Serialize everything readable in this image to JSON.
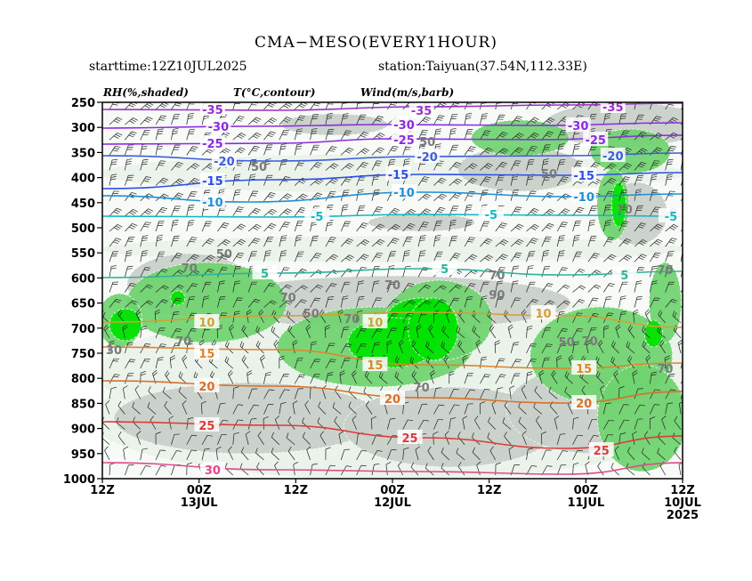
{
  "header": {
    "title": "CMA−MESO(EVERY1HOUR)",
    "starttime": "starttime:12Z10JUL2025",
    "station": "station:Taiyuan(37.54N,112.33E)"
  },
  "chart_data": {
    "type": "heatmap",
    "field_labels": {
      "rh": "RH(%,shaded)",
      "temp": "T(°C,contour)",
      "wind": "Wind(m/s,barb)"
    },
    "y_axis": {
      "scale": "pressure-reversed",
      "ylim": [
        1000,
        250
      ],
      "ticks": [
        "250",
        "300",
        "350",
        "400",
        "450",
        "500",
        "550",
        "600",
        "650",
        "700",
        "750",
        "800",
        "850",
        "900",
        "950",
        "1000"
      ]
    },
    "x_axis": {
      "direction": "time-reversed",
      "ticks": [
        {
          "label": "12Z",
          "sub": "",
          "sub2": ""
        },
        {
          "label": "00Z",
          "sub": "13JUL",
          "sub2": ""
        },
        {
          "label": "12Z",
          "sub": "",
          "sub2": ""
        },
        {
          "label": "00Z",
          "sub": "12JUL",
          "sub2": ""
        },
        {
          "label": "12Z",
          "sub": "",
          "sub2": ""
        },
        {
          "label": "00Z",
          "sub": "11JUL",
          "sub2": ""
        },
        {
          "label": "12Z",
          "sub": "10JUL",
          "sub2": "2025"
        }
      ]
    },
    "rh_levels": [
      30,
      50,
      70,
      90
    ],
    "rh_colors": {
      "30": "#eaf3ea",
      "50": "#c9cfc9",
      "70": "#6fd46f",
      "90": "#00e400"
    },
    "temperature_contours": [
      {
        "t": -35,
        "color": "#9b30c9",
        "path": [
          [
            0,
            123
          ],
          [
            0.3,
            124
          ],
          [
            0.55,
            120
          ],
          [
            0.8,
            118
          ],
          [
            1,
            116
          ]
        ],
        "labels": [
          [
            0.19,
            123,
            "-35"
          ],
          [
            0.55,
            124,
            "-35"
          ],
          [
            0.88,
            120,
            "-35"
          ]
        ]
      },
      {
        "t": -30,
        "color": "#8a2be2",
        "path": [
          [
            0,
            144
          ],
          [
            0.25,
            142
          ],
          [
            0.5,
            140
          ],
          [
            0.75,
            141
          ],
          [
            1,
            138
          ]
        ],
        "labels": [
          [
            0.2,
            142,
            "-30"
          ],
          [
            0.52,
            140,
            "-30"
          ],
          [
            0.82,
            141,
            "-30"
          ]
        ]
      },
      {
        "t": -25,
        "color": "#8a2be2",
        "path": [
          [
            0,
            162
          ],
          [
            0.3,
            161
          ],
          [
            0.5,
            156
          ],
          [
            0.75,
            157
          ],
          [
            1,
            152
          ]
        ],
        "labels": [
          [
            0.19,
            161,
            "-25"
          ],
          [
            0.52,
            157,
            "-25"
          ],
          [
            0.85,
            157,
            "-25"
          ]
        ]
      },
      {
        "t": -20,
        "color": "#3c5ddc",
        "path": [
          [
            0,
            175
          ],
          [
            0.3,
            181
          ],
          [
            0.55,
            176
          ],
          [
            0.8,
            175
          ],
          [
            1,
            172
          ]
        ],
        "labels": [
          [
            0.21,
            181,
            "-20"
          ],
          [
            0.56,
            176,
            "-20"
          ],
          [
            0.88,
            175,
            "-20"
          ]
        ]
      },
      {
        "t": -15,
        "color": "#2b4fe6",
        "path": [
          [
            0,
            212
          ],
          [
            0.3,
            202
          ],
          [
            0.55,
            196
          ],
          [
            0.8,
            197
          ],
          [
            1,
            194
          ]
        ],
        "labels": [
          [
            0.19,
            203,
            "-15"
          ],
          [
            0.51,
            196,
            "-15"
          ],
          [
            0.83,
            197,
            "-15"
          ]
        ]
      },
      {
        "t": -10,
        "color": "#1e90d6",
        "path": [
          [
            0,
            220
          ],
          [
            0.25,
            227
          ],
          [
            0.55,
            216
          ],
          [
            0.8,
            221
          ],
          [
            1,
            218
          ]
        ],
        "labels": [
          [
            0.19,
            227,
            "-10"
          ],
          [
            0.52,
            216,
            "-10"
          ],
          [
            0.83,
            221,
            "-10"
          ]
        ]
      },
      {
        "t": -5,
        "color": "#12b7c4",
        "path": [
          [
            0,
            243
          ],
          [
            0.3,
            244
          ],
          [
            0.55,
            241
          ],
          [
            0.8,
            242
          ],
          [
            1,
            243
          ]
        ],
        "labels": [
          [
            0.37,
            243,
            "-5"
          ],
          [
            0.67,
            241,
            "-5"
          ],
          [
            0.98,
            243,
            "-5"
          ]
        ]
      },
      {
        "t": 5,
        "color": "#2bb39a",
        "path": [
          [
            0,
            312
          ],
          [
            0.3,
            307
          ],
          [
            0.55,
            302
          ],
          [
            0.8,
            309
          ],
          [
            1,
            305
          ]
        ],
        "labels": [
          [
            0.28,
            307,
            "5"
          ],
          [
            0.59,
            302,
            "5"
          ],
          [
            0.9,
            309,
            "5"
          ]
        ]
      },
      {
        "t": 10,
        "color": "#d2a036",
        "path": [
          [
            0,
            362
          ],
          [
            0.3,
            355
          ],
          [
            0.55,
            351
          ],
          [
            0.8,
            355
          ],
          [
            1,
            368
          ]
        ],
        "labels": [
          [
            0.18,
            362,
            "10"
          ],
          [
            0.47,
            362,
            "10"
          ],
          [
            0.76,
            352,
            "10"
          ]
        ]
      },
      {
        "t": 15,
        "color": "#e0842a",
        "path": [
          [
            0,
            390
          ],
          [
            0.3,
            393
          ],
          [
            0.55,
            410
          ],
          [
            0.8,
            414
          ],
          [
            1,
            408
          ]
        ],
        "labels": [
          [
            0.18,
            397,
            "15"
          ],
          [
            0.47,
            410,
            "15"
          ],
          [
            0.83,
            414,
            "15"
          ]
        ]
      },
      {
        "t": 20,
        "color": "#d9702a",
        "path": [
          [
            0,
            428
          ],
          [
            0.3,
            434
          ],
          [
            0.55,
            447
          ],
          [
            0.8,
            453
          ],
          [
            1,
            440
          ]
        ],
        "labels": [
          [
            0.18,
            434,
            "20"
          ],
          [
            0.5,
            448,
            "20"
          ],
          [
            0.83,
            453,
            "20"
          ]
        ]
      },
      {
        "t": 25,
        "color": "#dd3b3b",
        "path": [
          [
            0,
            474
          ],
          [
            0.3,
            478
          ],
          [
            0.55,
            492
          ],
          [
            0.8,
            504
          ],
          [
            1,
            490
          ]
        ],
        "labels": [
          [
            0.18,
            478,
            "25"
          ],
          [
            0.53,
            492,
            "25"
          ],
          [
            0.86,
            506,
            "25"
          ]
        ]
      },
      {
        "t": 30,
        "color": "#e04a8a",
        "path": [
          [
            0,
            520
          ],
          [
            0.3,
            528
          ],
          [
            0.55,
            530
          ],
          [
            0.8,
            533
          ],
          [
            1,
            520
          ]
        ],
        "labels": [
          [
            0.19,
            528,
            "30"
          ]
        ]
      }
    ],
    "rh_labels": [
      [
        0.02,
        393,
        "30"
      ],
      [
        0.15,
        301,
        "70"
      ],
      [
        0.21,
        285,
        "50"
      ],
      [
        0.14,
        383,
        "70"
      ],
      [
        0.32,
        334,
        "70"
      ],
      [
        0.36,
        352,
        "50"
      ],
      [
        0.43,
        358,
        "70"
      ],
      [
        0.5,
        320,
        "70"
      ],
      [
        0.55,
        435,
        "70"
      ],
      [
        0.68,
        309,
        "70"
      ],
      [
        0.68,
        331,
        "90"
      ],
      [
        0.8,
        384,
        "50"
      ],
      [
        0.84,
        383,
        "70"
      ],
      [
        0.97,
        303,
        "70"
      ],
      [
        0.97,
        414,
        "70"
      ],
      [
        0.27,
        187,
        "50"
      ],
      [
        0.77,
        195,
        "50"
      ],
      [
        0.56,
        159,
        "50"
      ],
      [
        0.9,
        235,
        "70"
      ]
    ]
  }
}
